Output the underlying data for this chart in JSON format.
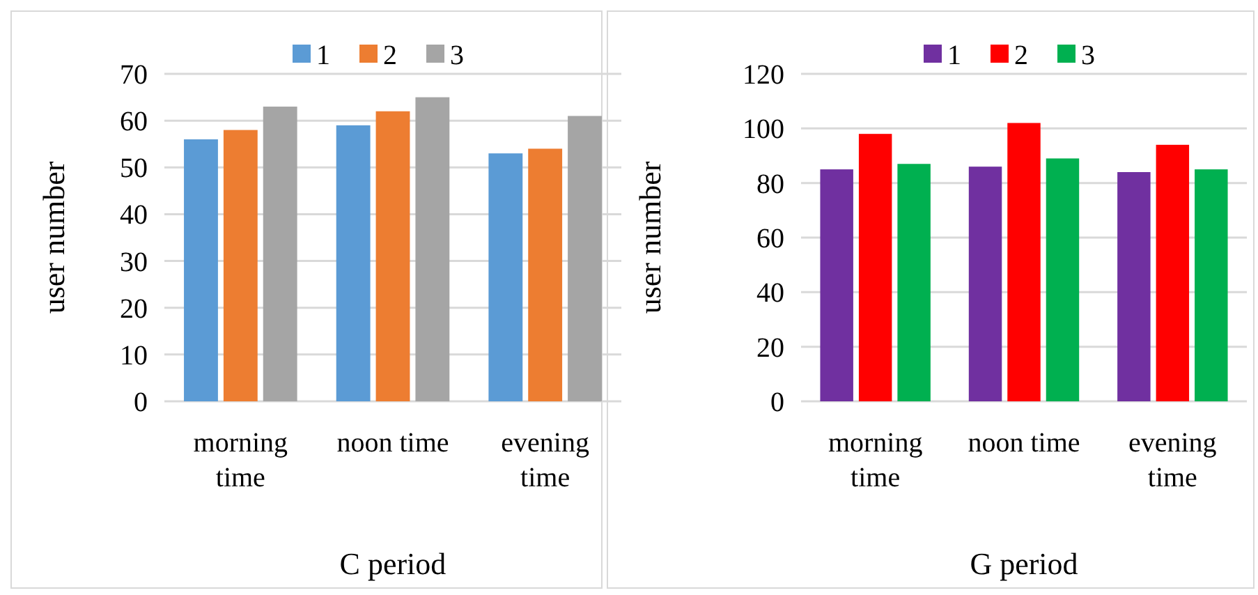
{
  "chart_data": [
    {
      "type": "bar",
      "title": "C period",
      "ylabel": "user number",
      "categories": [
        "morning time",
        "noon time",
        "evening time"
      ],
      "series": [
        {
          "name": "1",
          "color": "#5b9bd5",
          "values": [
            56,
            59,
            53
          ]
        },
        {
          "name": "2",
          "color": "#ed7d31",
          "values": [
            58,
            62,
            54
          ]
        },
        {
          "name": "3",
          "color": "#a5a5a5",
          "values": [
            63,
            65,
            61
          ]
        }
      ],
      "ylim": [
        0,
        70
      ],
      "yticks": [
        0,
        10,
        20,
        30,
        40,
        50,
        60,
        70
      ],
      "grid": "y",
      "legend": "top"
    },
    {
      "type": "bar",
      "title": "G period",
      "ylabel": "user number",
      "categories": [
        "morning time",
        "noon time",
        "evening time"
      ],
      "series": [
        {
          "name": "1",
          "color": "#7030a0",
          "values": [
            85,
            86,
            84
          ]
        },
        {
          "name": "2",
          "color": "#ff0000",
          "values": [
            98,
            102,
            94
          ]
        },
        {
          "name": "3",
          "color": "#00b050",
          "values": [
            87,
            89,
            85
          ]
        }
      ],
      "ylim": [
        0,
        120
      ],
      "yticks": [
        0,
        20,
        40,
        60,
        80,
        100,
        120
      ],
      "grid": "y",
      "legend": "top"
    }
  ]
}
